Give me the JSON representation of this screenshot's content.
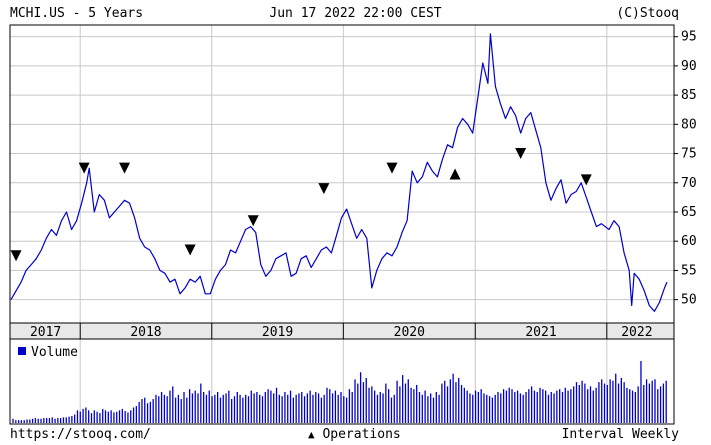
{
  "header": {
    "title": "MCHI.US - 5 Years",
    "timestamp": "Jun 17 2022 22:00 CEST",
    "source": "(C)Stooq"
  },
  "footer": {
    "url": "https://stooq.com/",
    "operations_label": "Operations",
    "interval_label": "Interval Weekly"
  },
  "colors": {
    "line": "#0000cc",
    "volume": "#0000cc",
    "marker": "#000000",
    "grid": "#c8c8c8",
    "axis_band": "#e8e8e8"
  },
  "chart_data": [
    {
      "type": "line",
      "title": "MCHI.US - 5 Years",
      "series": [
        {
          "name": "MCHI.US"
        }
      ],
      "x_tick_labels": [
        "2017",
        "2018",
        "2019",
        "2020",
        "2021",
        "2022"
      ],
      "y_ticks": [
        50,
        55,
        60,
        65,
        70,
        75,
        80,
        85,
        90,
        95
      ],
      "ylim": [
        46,
        97
      ],
      "y_axis_side": "right",
      "grid": true,
      "points": [
        [
          "2017-06-23",
          50.0
        ],
        [
          "2017-07-07",
          51.5
        ],
        [
          "2017-07-21",
          53.0
        ],
        [
          "2017-08-04",
          55.0
        ],
        [
          "2017-08-18",
          56.0
        ],
        [
          "2017-09-01",
          57.0
        ],
        [
          "2017-09-15",
          58.5
        ],
        [
          "2017-09-29",
          60.5
        ],
        [
          "2017-10-13",
          62.0
        ],
        [
          "2017-10-27",
          61.0
        ],
        [
          "2017-11-10",
          63.5
        ],
        [
          "2017-11-24",
          65.0
        ],
        [
          "2017-12-08",
          62.0
        ],
        [
          "2017-12-22",
          63.5
        ],
        [
          "2018-01-05",
          66.5
        ],
        [
          "2018-01-19",
          70.0
        ],
        [
          "2018-01-26",
          72.5
        ],
        [
          "2018-02-09",
          65.0
        ],
        [
          "2018-02-23",
          68.0
        ],
        [
          "2018-03-09",
          67.0
        ],
        [
          "2018-03-23",
          64.0
        ],
        [
          "2018-04-06",
          65.0
        ],
        [
          "2018-04-20",
          66.0
        ],
        [
          "2018-05-04",
          67.0
        ],
        [
          "2018-05-18",
          66.5
        ],
        [
          "2018-06-01",
          64.0
        ],
        [
          "2018-06-15",
          60.5
        ],
        [
          "2018-06-29",
          59.0
        ],
        [
          "2018-07-13",
          58.5
        ],
        [
          "2018-07-27",
          57.0
        ],
        [
          "2018-08-10",
          55.0
        ],
        [
          "2018-08-24",
          54.5
        ],
        [
          "2018-09-07",
          53.0
        ],
        [
          "2018-09-21",
          53.5
        ],
        [
          "2018-10-05",
          51.0
        ],
        [
          "2018-10-19",
          52.0
        ],
        [
          "2018-11-02",
          53.5
        ],
        [
          "2018-11-16",
          53.0
        ],
        [
          "2018-11-30",
          54.0
        ],
        [
          "2018-12-14",
          51.0
        ],
        [
          "2018-12-28",
          51.0
        ],
        [
          "2019-01-11",
          53.5
        ],
        [
          "2019-01-25",
          55.0
        ],
        [
          "2019-02-08",
          56.0
        ],
        [
          "2019-02-22",
          58.5
        ],
        [
          "2019-03-08",
          58.0
        ],
        [
          "2019-03-22",
          60.0
        ],
        [
          "2019-04-05",
          62.0
        ],
        [
          "2019-04-19",
          62.5
        ],
        [
          "2019-05-03",
          61.5
        ],
        [
          "2019-05-17",
          56.0
        ],
        [
          "2019-05-31",
          54.0
        ],
        [
          "2019-06-14",
          55.0
        ],
        [
          "2019-06-28",
          57.0
        ],
        [
          "2019-07-12",
          57.5
        ],
        [
          "2019-07-26",
          58.0
        ],
        [
          "2019-08-09",
          54.0
        ],
        [
          "2019-08-23",
          54.5
        ],
        [
          "2019-09-06",
          57.0
        ],
        [
          "2019-09-20",
          57.5
        ],
        [
          "2019-10-04",
          55.5
        ],
        [
          "2019-10-18",
          57.0
        ],
        [
          "2019-11-01",
          58.5
        ],
        [
          "2019-11-15",
          59.0
        ],
        [
          "2019-11-29",
          58.0
        ],
        [
          "2019-12-13",
          61.0
        ],
        [
          "2019-12-27",
          64.0
        ],
        [
          "2020-01-10",
          65.5
        ],
        [
          "2020-01-24",
          63.0
        ],
        [
          "2020-02-07",
          60.5
        ],
        [
          "2020-02-21",
          62.0
        ],
        [
          "2020-03-06",
          60.5
        ],
        [
          "2020-03-20",
          52.0
        ],
        [
          "2020-04-03",
          55.0
        ],
        [
          "2020-04-17",
          57.0
        ],
        [
          "2020-05-01",
          58.0
        ],
        [
          "2020-05-15",
          57.5
        ],
        [
          "2020-05-29",
          59.0
        ],
        [
          "2020-06-12",
          61.5
        ],
        [
          "2020-06-26",
          63.5
        ],
        [
          "2020-07-10",
          72.0
        ],
        [
          "2020-07-24",
          70.0
        ],
        [
          "2020-08-07",
          71.0
        ],
        [
          "2020-08-21",
          73.5
        ],
        [
          "2020-09-04",
          72.0
        ],
        [
          "2020-09-18",
          71.0
        ],
        [
          "2020-10-02",
          74.0
        ],
        [
          "2020-10-16",
          76.5
        ],
        [
          "2020-10-30",
          76.0
        ],
        [
          "2020-11-13",
          79.5
        ],
        [
          "2020-11-27",
          81.0
        ],
        [
          "2020-12-11",
          80.0
        ],
        [
          "2020-12-25",
          78.5
        ],
        [
          "2021-01-08",
          84.5
        ],
        [
          "2021-01-22",
          90.5
        ],
        [
          "2021-02-05",
          87.0
        ],
        [
          "2021-02-12",
          95.5
        ],
        [
          "2021-02-26",
          86.5
        ],
        [
          "2021-03-12",
          83.5
        ],
        [
          "2021-03-26",
          81.0
        ],
        [
          "2021-04-09",
          83.0
        ],
        [
          "2021-04-23",
          81.5
        ],
        [
          "2021-05-07",
          78.5
        ],
        [
          "2021-05-21",
          81.0
        ],
        [
          "2021-06-04",
          82.0
        ],
        [
          "2021-06-18",
          79.0
        ],
        [
          "2021-07-02",
          76.0
        ],
        [
          "2021-07-16",
          70.0
        ],
        [
          "2021-07-30",
          67.0
        ],
        [
          "2021-08-13",
          69.0
        ],
        [
          "2021-08-27",
          70.5
        ],
        [
          "2021-09-10",
          66.5
        ],
        [
          "2021-09-24",
          68.0
        ],
        [
          "2021-10-08",
          68.5
        ],
        [
          "2021-10-22",
          70.0
        ],
        [
          "2021-11-05",
          67.5
        ],
        [
          "2021-11-19",
          65.0
        ],
        [
          "2021-12-03",
          62.5
        ],
        [
          "2021-12-17",
          63.0
        ],
        [
          "2022-01-07",
          62.0
        ],
        [
          "2022-01-21",
          63.5
        ],
        [
          "2022-02-04",
          62.5
        ],
        [
          "2022-02-18",
          58.0
        ],
        [
          "2022-03-04",
          55.0
        ],
        [
          "2022-03-11",
          49.0
        ],
        [
          "2022-03-18",
          54.5
        ],
        [
          "2022-04-01",
          53.5
        ],
        [
          "2022-04-15",
          51.5
        ],
        [
          "2022-04-29",
          49.0
        ],
        [
          "2022-05-13",
          48.0
        ],
        [
          "2022-05-27",
          49.5
        ],
        [
          "2022-06-10",
          52.0
        ],
        [
          "2022-06-17",
          53.0
        ]
      ],
      "operations": [
        {
          "date": "2017-07-07",
          "direction": "down",
          "value": 57.5
        },
        {
          "date": "2018-01-12",
          "direction": "down",
          "value": 72.5
        },
        {
          "date": "2018-05-04",
          "direction": "down",
          "value": 72.5
        },
        {
          "date": "2018-11-02",
          "direction": "down",
          "value": 58.5
        },
        {
          "date": "2019-04-26",
          "direction": "down",
          "value": 63.5
        },
        {
          "date": "2019-11-08",
          "direction": "down",
          "value": 69.0
        },
        {
          "date": "2020-05-15",
          "direction": "down",
          "value": 72.5
        },
        {
          "date": "2020-11-06",
          "direction": "up",
          "value": 71.5
        },
        {
          "date": "2021-05-07",
          "direction": "down",
          "value": 75.0
        },
        {
          "date": "2021-11-05",
          "direction": "down",
          "value": 70.5
        }
      ]
    },
    {
      "type": "bar",
      "series": [
        {
          "name": "Volume"
        }
      ],
      "values": [
        6,
        4,
        4,
        4,
        4,
        5,
        5,
        6,
        7,
        6,
        6,
        7,
        7,
        7,
        8,
        6,
        7,
        7,
        8,
        8,
        9,
        10,
        12,
        18,
        16,
        20,
        22,
        18,
        14,
        18,
        16,
        14,
        20,
        18,
        16,
        18,
        15,
        16,
        18,
        20,
        17,
        15,
        18,
        22,
        24,
        30,
        34,
        36,
        28,
        30,
        34,
        40,
        38,
        44,
        40,
        38,
        46,
        52,
        36,
        40,
        34,
        44,
        36,
        48,
        42,
        46,
        42,
        56,
        44,
        40,
        46,
        38,
        40,
        44,
        36,
        40,
        42,
        46,
        34,
        38,
        44,
        40,
        36,
        40,
        38,
        46,
        42,
        44,
        40,
        38,
        44,
        48,
        46,
        42,
        50,
        40,
        38,
        44,
        40,
        46,
        36,
        40,
        42,
        44,
        38,
        42,
        46,
        40,
        44,
        42,
        36,
        40,
        50,
        48,
        42,
        46,
        40,
        44,
        38,
        36,
        48,
        44,
        62,
        56,
        72,
        58,
        64,
        50,
        52,
        46,
        40,
        44,
        42,
        56,
        48,
        36,
        40,
        60,
        52,
        68,
        56,
        62,
        50,
        48,
        54,
        44,
        40,
        46,
        38,
        42,
        36,
        44,
        40,
        56,
        60,
        52,
        62,
        70,
        58,
        64,
        54,
        50,
        46,
        42,
        40,
        46,
        44,
        48,
        42,
        40,
        38,
        36,
        40,
        44,
        42,
        48,
        46,
        50,
        48,
        44,
        46,
        42,
        40,
        44,
        48,
        52,
        46,
        44,
        50,
        48,
        46,
        40,
        44,
        42,
        46,
        48,
        44,
        50,
        46,
        48,
        52,
        58,
        54,
        60,
        56,
        48,
        52,
        46,
        50,
        58,
        62,
        56,
        54,
        62,
        60,
        70,
        56,
        64,
        58,
        50,
        48,
        46,
        44,
        52,
        88,
        54,
        62,
        56,
        60,
        62,
        48,
        52,
        56,
        60
      ]
    }
  ]
}
